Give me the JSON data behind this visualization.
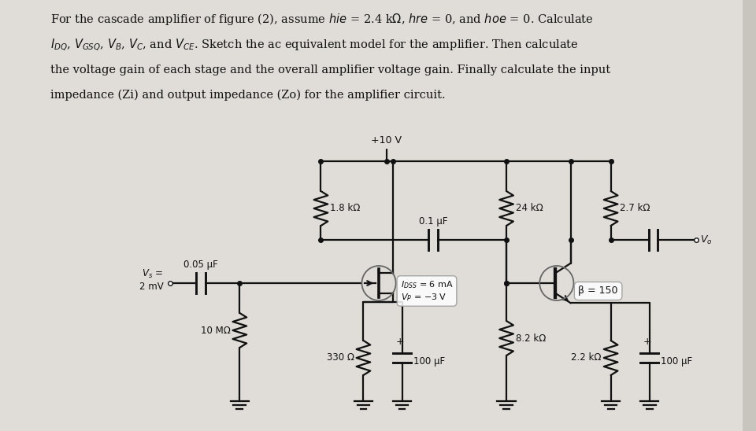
{
  "bg_color": "#c8c4be",
  "paper_color": "#e0ddd8",
  "title_lines": [
    "For the cascade amplifier of figure (2), assume $hie$ = 2.4 k$\\Omega$, $hre$ = 0, and $hoe$ = 0. Calculate",
    "$I_{DQ}$, $V_{GSQ}$, $V_B$, $V_C$, and $V_{CE}$. Sketch the ac equivalent model for the amplifier. Then calculate",
    "the voltage gain of each stage and the overall amplifier voltage gain. Finally calculate the input",
    "impedance (Zi) and output impedance (Zo) for the amplifier circuit."
  ],
  "vcc_label": "+10 V",
  "r1_label": "1.8 kΩ",
  "r2_label": "24 kΩ",
  "r3_label": "2.7 kΩ",
  "c1_label": "0.05 μF",
  "c2_label": "0.1 μF",
  "c3_label": "100 μF",
  "c4_label": "100 μF",
  "r_gate_label": "10 MΩ",
  "r_source_label": "330 Ω",
  "r_bjt_base_label": "8.2 kΩ",
  "r_emitter_label": "2.2 kΩ",
  "vs_label": "$V_s$ =\n2 mV",
  "jfet_label": "$I_{DSS}$ = 6 mA\n$V_P$ = −3 V",
  "bjt_label": "β = 150",
  "vo_label": "$V_o$",
  "line_color": "#111111",
  "text_color": "#111111"
}
